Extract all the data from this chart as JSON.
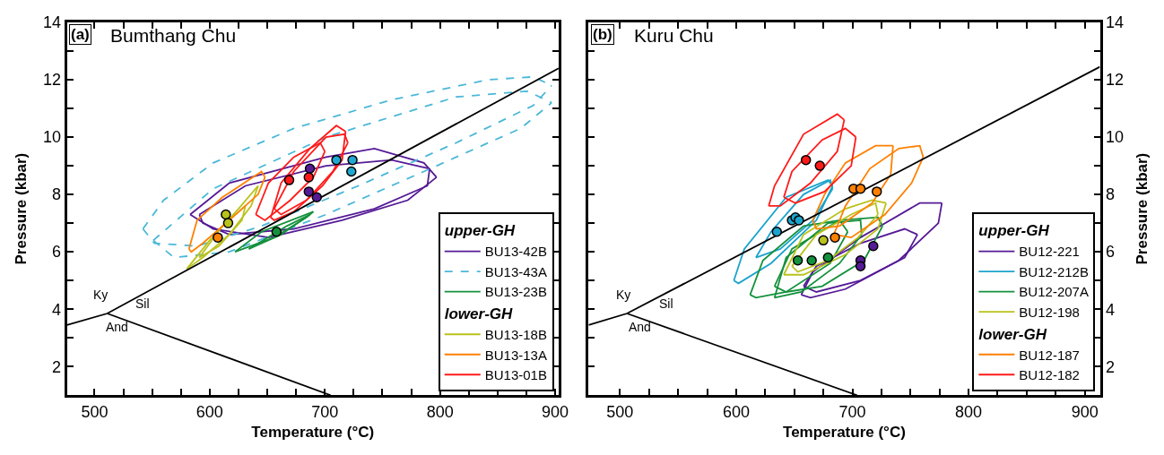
{
  "chart_data": [
    {
      "type": "line",
      "title": "Bumthang Chu",
      "xlabel": "Temperature (°C)",
      "ylabel": "Pressure (kbar)",
      "xlim": [
        476,
        903
      ],
      "ylim": [
        1,
        14
      ],
      "xticks": [
        500,
        {
          "value": 525,
          "label": null
        },
        {
          "value": 550,
          "label": null
        },
        {
          "value": 575,
          "label": null
        },
        600,
        {
          "value": 625,
          "label": null
        },
        {
          "value": 650,
          "label": null
        },
        {
          "value": 675,
          "label": null
        },
        700,
        {
          "value": 725,
          "label": null
        },
        {
          "value": 750,
          "label": null
        },
        {
          "value": 775,
          "label": null
        },
        800,
        {
          "value": 825,
          "label": null
        },
        {
          "value": 850,
          "label": null
        },
        {
          "value": 875,
          "label": null
        },
        900
      ],
      "yticks": [
        2,
        {
          "value": 3,
          "label": null
        },
        4,
        {
          "value": 5,
          "label": null
        },
        6,
        {
          "value": 7,
          "label": null
        },
        8,
        {
          "value": 9,
          "label": null
        },
        10,
        {
          "value": 11,
          "label": null
        },
        12,
        {
          "value": 13,
          "label": null
        },
        14
      ],
      "legend": "bottom right",
      "legend_title": [
        "upper-GH",
        "lower-GH"
      ],
      "annotations": [
        "(a)",
        "Ky",
        "Sil",
        "And"
      ],
      "series": [
        {
          "name": "BU13-42B",
          "color": "#551a96",
          "x": [
            583,
            617,
            701,
            743,
            786,
            797
          ],
          "values": [
            7.3,
            8.4,
            9.3,
            9.6,
            9.1,
            8.6
          ]
        },
        {
          "color": "#551a96",
          "x": [
            583,
            603,
            651,
            715,
            772,
            797
          ],
          "values": [
            7.3,
            6.8,
            6.5,
            7.1,
            7.8,
            8.6
          ]
        },
        {
          "color": "#551a96",
          "x": [
            591,
            631,
            701,
            758,
            791
          ],
          "values": [
            7.3,
            8.3,
            9.0,
            9.2,
            8.9
          ]
        },
        {
          "color": "#551a96",
          "x": [
            591,
            594,
            617,
            673,
            743,
            789,
            791
          ],
          "values": [
            7.3,
            7.0,
            6.6,
            6.8,
            7.5,
            8.3,
            8.9
          ]
        },
        {
          "name": "BU13-43A",
          "color": "#4bb8d8",
          "line_style": "dashed",
          "x": [
            542,
            560,
            603,
            673,
            758,
            842,
            881,
            897
          ],
          "values": [
            6.8,
            7.8,
            9.1,
            10.3,
            11.3,
            12.0,
            12.1,
            11.8
          ]
        },
        {
          "color": "#4bb8d8",
          "line_style": "dashed",
          "x": [
            542,
            552,
            589,
            645,
            729,
            814,
            881,
            897
          ],
          "values": [
            6.8,
            6.3,
            6.2,
            6.9,
            8.3,
            9.8,
            11.1,
            11.8
          ]
        },
        {
          "color": "#4bb8d8",
          "line_style": "dashed",
          "x": [
            551,
            603,
            701,
            814,
            876,
            897
          ],
          "values": [
            6.4,
            8.2,
            10.0,
            11.4,
            11.6,
            11.2
          ]
        },
        {
          "color": "#4bb8d8",
          "line_style": "dashed",
          "x": [
            551,
            569,
            617,
            701,
            786,
            870,
            897
          ],
          "values": [
            6.4,
            5.8,
            6.0,
            7.3,
            8.8,
            10.3,
            11.2
          ]
        },
        {
          "name": "BU13-23B",
          "color": "#14913c",
          "x": [
            622,
            645,
            690
          ],
          "values": [
            6.0,
            6.7,
            7.4
          ]
        },
        {
          "color": "#14913c",
          "x": [
            622,
            656,
            684,
            690
          ],
          "values": [
            6.0,
            6.5,
            7.2,
            7.4
          ]
        },
        {
          "color": "#14913c",
          "x": [
            634,
            667,
            687
          ],
          "values": [
            6.1,
            6.9,
            7.3
          ]
        },
        {
          "color": "#14913c",
          "x": [
            634,
            662,
            687
          ],
          "values": [
            6.1,
            6.6,
            7.3
          ]
        },
        {
          "name": "BU13-18B",
          "color": "#b9c21c",
          "x": [
            580,
            600,
            625,
            642
          ],
          "values": [
            5.4,
            6.4,
            7.5,
            8.3
          ]
        },
        {
          "color": "#b9c21c",
          "x": [
            580,
            594,
            617,
            636,
            642
          ],
          "values": [
            5.4,
            5.8,
            6.6,
            7.6,
            8.3
          ]
        },
        {
          "color": "#b9c21c",
          "x": [
            591,
            611,
            631
          ],
          "values": [
            5.8,
            6.9,
            7.6
          ]
        },
        {
          "color": "#b9c21c",
          "x": [
            591,
            608,
            628,
            631
          ],
          "values": [
            5.8,
            6.2,
            7.1,
            7.6
          ]
        },
        {
          "name": "BU13-13A",
          "color": "#ff8000",
          "x": [
            582,
            589,
            611,
            645,
            648
          ],
          "values": [
            6.1,
            7.1,
            7.9,
            8.8,
            8.6
          ]
        },
        {
          "color": "#ff8000",
          "x": [
            582,
            584,
            594,
            617,
            642,
            648
          ],
          "values": [
            6.1,
            6.0,
            6.3,
            7.1,
            8.0,
            8.6
          ]
        },
        {
          "name": "BU13-01B",
          "color": "#ff1a1a",
          "x": [
            640,
            651,
            673,
            696,
            700
          ],
          "values": [
            7.3,
            8.4,
            9.3,
            9.8,
            9.5
          ]
        },
        {
          "color": "#ff1a1a",
          "x": [
            640,
            648,
            670,
            690,
            700
          ],
          "values": [
            7.3,
            7.1,
            7.8,
            8.6,
            9.5
          ]
        },
        {
          "color": "#ff1a1a",
          "x": [
            653,
            662,
            687,
            710,
            718
          ],
          "values": [
            7.2,
            8.4,
            9.6,
            10.4,
            10.2
          ]
        },
        {
          "color": "#ff1a1a",
          "x": [
            653,
            656,
            673,
            698,
            715,
            718
          ],
          "values": [
            7.2,
            7.1,
            7.4,
            8.3,
            9.2,
            10.2
          ]
        },
        {
          "color": "#ff1a1a",
          "x": [
            656,
            673,
            701,
            717,
            720
          ],
          "values": [
            7.5,
            8.8,
            10.0,
            10.1,
            9.8
          ]
        },
        {
          "color": "#ff1a1a",
          "x": [
            656,
            662,
            684,
            707,
            720
          ],
          "values": [
            7.5,
            7.3,
            7.8,
            8.8,
            9.8
          ]
        },
        {
          "color": "#000000",
          "x": [
            476,
            511,
            903,
            null,
            511,
            705
          ],
          "values": [
            3.45,
            3.85,
            12.4,
            null,
            3.85,
            1.0
          ]
        },
        {
          "type": "scatter",
          "marker": "circle",
          "color": "#20a8d0",
          "x": [
            710,
            724,
            723
          ],
          "values": [
            9.2,
            9.2,
            8.8
          ]
        },
        {
          "type": "scatter",
          "marker": "circle",
          "color": "#551a96",
          "x": [
            687,
            686,
            693
          ],
          "values": [
            8.9,
            8.1,
            7.9
          ]
        },
        {
          "type": "scatter",
          "marker": "circle",
          "color": "#14913c",
          "x": [
            658
          ],
          "values": [
            6.7
          ]
        },
        {
          "type": "scatter",
          "marker": "circle",
          "color": "#b9c21c",
          "x": [
            614,
            616
          ],
          "values": [
            7.3,
            7.0
          ]
        },
        {
          "type": "scatter",
          "marker": "circle",
          "color": "#ff8000",
          "x": [
            607
          ],
          "values": [
            6.5
          ]
        },
        {
          "type": "scatter",
          "marker": "circle",
          "color": "#ff1a1a",
          "x": [
            669,
            686
          ],
          "values": [
            8.5,
            8.6
          ]
        }
      ]
    },
    {
      "type": "line",
      "title": "Kuru Chu",
      "xlabel": "Temperature (°C)",
      "y2label": "Pressure (kbar)",
      "xlim": [
        473,
        913
      ],
      "y2lim": [
        1,
        14
      ],
      "xticks": [
        500,
        {
          "value": 525,
          "label": null
        },
        {
          "value": 550,
          "label": null
        },
        {
          "value": 575,
          "label": null
        },
        600,
        {
          "value": 625,
          "label": null
        },
        {
          "value": 650,
          "label": null
        },
        {
          "value": 675,
          "label": null
        },
        700,
        {
          "value": 725,
          "label": null
        },
        {
          "value": 750,
          "label": null
        },
        {
          "value": 775,
          "label": null
        },
        800,
        {
          "value": 825,
          "label": null
        },
        {
          "value": 850,
          "label": null
        },
        {
          "value": 875,
          "label": null
        },
        900
      ],
      "y2ticks": [
        2,
        {
          "value": 3,
          "label": null
        },
        4,
        {
          "value": 5,
          "label": null
        },
        6,
        {
          "value": 7,
          "label": null
        },
        8,
        {
          "value": 9,
          "label": null
        },
        10,
        {
          "value": 11,
          "label": null
        },
        12,
        {
          "value": 13,
          "label": null
        },
        14
      ],
      "legend": "bottom right",
      "legend_title": [
        "upper-GH",
        "lower-GH"
      ],
      "annotations": [
        "(b)",
        "Ky",
        "Sil",
        "And"
      ],
      "series": [
        {
          "name": "BU12-221",
          "axis": "y2",
          "color": "#551a96",
          "x": [
            656,
            666,
            707,
            758,
            777
          ],
          "values": [
            4.5,
            5.3,
            6.5,
            7.7,
            7.7
          ]
        },
        {
          "axis": "y2",
          "color": "#551a96",
          "x": [
            656,
            664,
            694,
            740,
            774,
            777
          ],
          "values": [
            4.5,
            4.4,
            4.7,
            5.7,
            7.0,
            7.7
          ]
        },
        {
          "axis": "y2",
          "color": "#551a96",
          "x": [
            658,
            669,
            707,
            745,
            756
          ],
          "values": [
            4.8,
            5.5,
            6.3,
            6.8,
            6.6
          ]
        },
        {
          "axis": "y2",
          "color": "#551a96",
          "x": [
            658,
            669,
            707,
            745,
            756
          ],
          "values": [
            4.8,
            4.6,
            5.0,
            5.8,
            6.6
          ]
        },
        {
          "name": "BU12-212B",
          "axis": "y2",
          "color": "#1ca3cc",
          "x": [
            598,
            607,
            643,
            679,
            683
          ],
          "values": [
            5.0,
            6.1,
            7.9,
            8.5,
            8.3
          ]
        },
        {
          "axis": "y2",
          "color": "#1ca3cc",
          "x": [
            598,
            602,
            630,
            669,
            683
          ],
          "values": [
            5.0,
            4.9,
            5.6,
            7.1,
            8.3
          ]
        },
        {
          "axis": "y2",
          "color": "#1ca3cc",
          "x": [
            617,
            630,
            658,
            681,
            683
          ],
          "values": [
            5.8,
            6.7,
            8.0,
            8.5,
            8.2
          ]
        },
        {
          "axis": "y2",
          "color": "#1ca3cc",
          "x": [
            617,
            638,
            666,
            683
          ],
          "values": [
            5.8,
            6.1,
            7.1,
            8.2
          ]
        },
        {
          "name": "BU12-207A",
          "axis": "y2",
          "color": "#14913c",
          "x": [
            612,
            623,
            658,
            689,
            696
          ],
          "values": [
            4.5,
            5.7,
            6.9,
            7.1,
            6.7
          ]
        },
        {
          "axis": "y2",
          "color": "#14913c",
          "x": [
            612,
            617,
            643,
            681,
            696
          ],
          "values": [
            4.5,
            4.4,
            4.6,
            5.6,
            6.7
          ]
        },
        {
          "axis": "y2",
          "color": "#14913c",
          "x": [
            633,
            643,
            679,
            707,
            708
          ],
          "values": [
            4.4,
            5.8,
            7.0,
            7.1,
            6.6
          ]
        },
        {
          "axis": "y2",
          "color": "#14913c",
          "x": [
            633,
            656,
            689,
            708
          ],
          "values": [
            4.4,
            4.6,
            5.6,
            6.6
          ]
        },
        {
          "axis": "y2",
          "color": "#14913c",
          "x": [
            633,
            648,
            689,
            722,
            726
          ],
          "values": [
            4.8,
            6.1,
            7.1,
            7.2,
            6.9
          ]
        },
        {
          "axis": "y2",
          "color": "#14913c",
          "x": [
            633,
            643,
            674,
            710,
            726
          ],
          "values": [
            4.8,
            4.6,
            4.8,
            5.7,
            6.9
          ]
        },
        {
          "name": "BU12-198",
          "axis": "y2",
          "color": "#b9c21c",
          "x": [
            641,
            658,
            694,
            717,
            729
          ],
          "values": [
            5.2,
            6.6,
            7.5,
            7.8,
            7.7
          ]
        },
        {
          "axis": "y2",
          "color": "#b9c21c",
          "x": [
            641,
            658,
            694,
            722,
            729
          ],
          "values": [
            5.2,
            5.2,
            5.9,
            6.8,
            7.7
          ]
        },
        {
          "axis": "y2",
          "color": "#b9c21c",
          "x": [
            648,
            669,
            699,
            720,
            722
          ],
          "values": [
            5.5,
            6.6,
            7.3,
            7.7,
            7.3
          ]
        },
        {
          "axis": "y2",
          "color": "#b9c21c",
          "x": [
            648,
            653,
            679,
            705,
            722
          ],
          "values": [
            5.5,
            5.3,
            5.7,
            6.5,
            7.3
          ]
        },
        {
          "name": "BU12-187",
          "axis": "y2",
          "color": "#ff8000",
          "x": [
            666,
            676,
            694,
            720,
            735
          ],
          "values": [
            7.1,
            8.0,
            9.1,
            9.7,
            9.7
          ]
        },
        {
          "axis": "y2",
          "color": "#ff8000",
          "x": [
            666,
            669,
            689,
            717,
            733,
            735
          ],
          "values": [
            7.1,
            6.8,
            6.9,
            7.7,
            8.7,
            9.7
          ]
        },
        {
          "axis": "y2",
          "color": "#ff8000",
          "x": [
            684,
            694,
            715,
            740,
            758,
            761
          ],
          "values": [
            6.6,
            7.6,
            8.9,
            9.6,
            9.7,
            9.3
          ]
        },
        {
          "axis": "y2",
          "color": "#ff8000",
          "x": [
            684,
            699,
            728,
            751,
            761
          ],
          "values": [
            6.6,
            6.5,
            7.3,
            8.4,
            9.3
          ]
        },
        {
          "name": "BU12-182",
          "axis": "y2",
          "color": "#ff1a1a",
          "x": [
            628,
            633,
            658,
            687,
            693
          ],
          "values": [
            7.6,
            8.3,
            10.1,
            10.8,
            10.6
          ]
        },
        {
          "axis": "y2",
          "color": "#ff1a1a",
          "x": [
            628,
            638,
            664,
            687,
            693
          ],
          "values": [
            7.6,
            7.6,
            8.4,
            9.5,
            10.6
          ]
        },
        {
          "axis": "y2",
          "color": "#ff1a1a",
          "x": [
            641,
            648,
            674,
            694,
            703
          ],
          "values": [
            7.9,
            8.8,
            9.9,
            10.3,
            10.0
          ]
        },
        {
          "axis": "y2",
          "color": "#ff1a1a",
          "x": [
            641,
            651,
            676,
            699,
            703
          ],
          "values": [
            7.9,
            7.7,
            8.1,
            9.0,
            10.0
          ]
        },
        {
          "axis": "y2",
          "color": "#000000",
          "x": [
            473,
            506,
            913,
            null,
            506,
            704
          ],
          "values": [
            3.45,
            3.85,
            12.45,
            null,
            3.85,
            1.0
          ]
        },
        {
          "type": "scatter",
          "marker": "circle",
          "axis": "y2",
          "color": "#ff1a1a",
          "x": [
            660,
            672
          ],
          "values": [
            9.2,
            9.0
          ]
        },
        {
          "type": "scatter",
          "marker": "circle",
          "axis": "y2",
          "color": "#1ca3cc",
          "x": [
            635,
            648,
            651,
            654
          ],
          "values": [
            6.7,
            7.1,
            7.2,
            7.1
          ]
        },
        {
          "type": "scatter",
          "marker": "circle",
          "axis": "y2",
          "color": "#ff8000",
          "x": [
            701,
            707,
            721,
            685
          ],
          "values": [
            8.2,
            8.2,
            8.1,
            6.5
          ]
        },
        {
          "type": "scatter",
          "marker": "circle",
          "axis": "y2",
          "color": "#b9c21c",
          "x": [
            675
          ],
          "values": [
            6.4
          ]
        },
        {
          "type": "scatter",
          "marker": "circle",
          "axis": "y2",
          "color": "#14913c",
          "x": [
            653,
            665,
            679
          ],
          "values": [
            5.7,
            5.7,
            5.8
          ]
        },
        {
          "type": "scatter",
          "marker": "circle",
          "axis": "y2",
          "color": "#551a96",
          "x": [
            718,
            707,
            707
          ],
          "values": [
            6.2,
            5.7,
            5.5
          ]
        }
      ]
    }
  ]
}
